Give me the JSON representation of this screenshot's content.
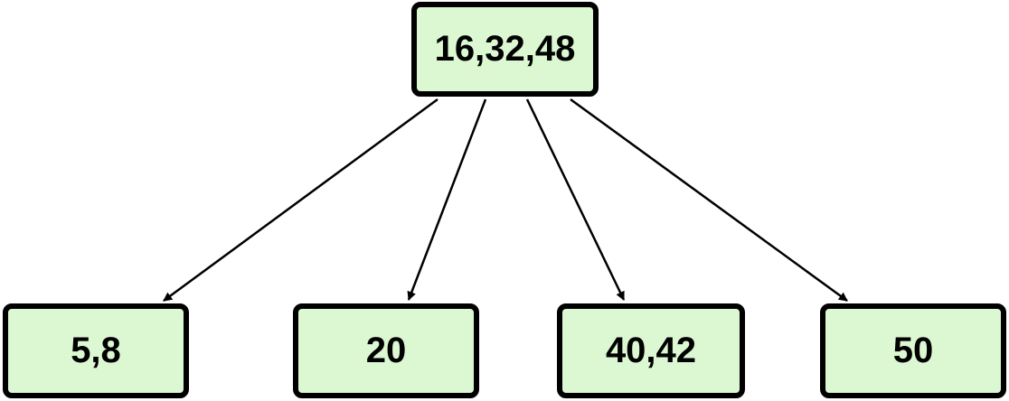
{
  "root": {
    "label": "16,32,48"
  },
  "children": [
    {
      "label": "5,8"
    },
    {
      "label": "20"
    },
    {
      "label": "40,42"
    },
    {
      "label": "50"
    }
  ],
  "colors": {
    "node_fill": "#dcf8d2",
    "stroke": "#000000"
  }
}
